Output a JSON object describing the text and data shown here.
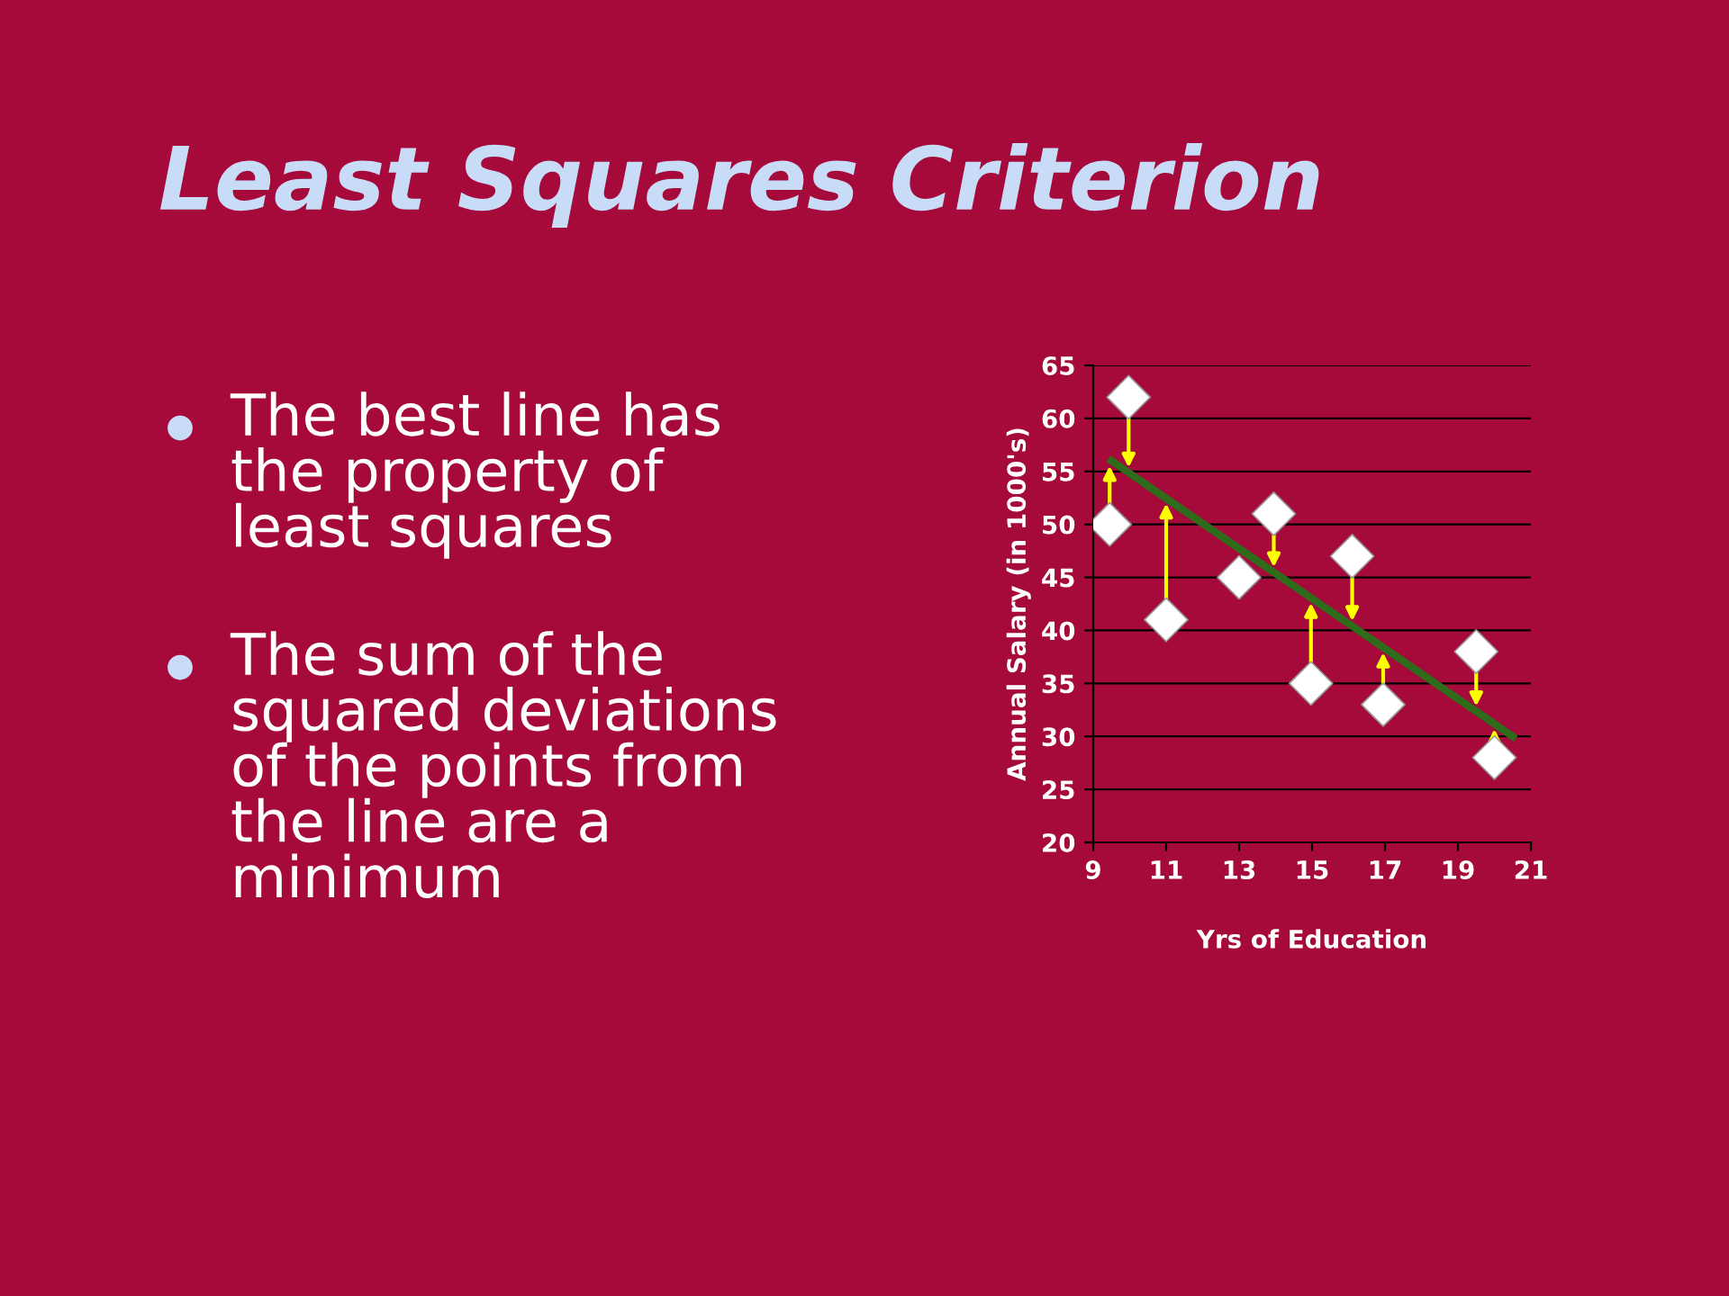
{
  "chart_data": {
    "type": "scatter",
    "title": "Least Squares Criterion",
    "xlabel": "Yrs of Education",
    "ylabel": "Annual Salary (in 1000's)",
    "annotations": [
      "The best line has\nthe property of\nleast squares",
      "The sum of the\nsquared deviations\nof the points from\nthe line are a\nminimum"
    ],
    "x": [
      9.45,
      9.97,
      11,
      13,
      13.95,
      14.97,
      16.1,
      16.95,
      19.5,
      20
    ],
    "series": [
      {
        "color": "#ffffff",
        "marker": "diamond",
        "values": [
          50,
          62,
          41,
          45,
          51,
          35,
          47,
          33,
          38,
          28
        ]
      },
      {
        "type": "line",
        "color": "#2e6b1a",
        "marker": "none",
        "line_style": "solid",
        "x": [
          9.5,
          20.5
        ],
        "values": [
          56,
          30
        ]
      }
    ],
    "xlim": [
      9,
      21
    ],
    "xticks": [
      9,
      11,
      13,
      15,
      17,
      19,
      21
    ],
    "ylim": [
      20,
      65
    ],
    "yticks": [
      20,
      25,
      30,
      35,
      40,
      45,
      50,
      55,
      60,
      65
    ],
    "grid": "y",
    "legend": false
  }
}
